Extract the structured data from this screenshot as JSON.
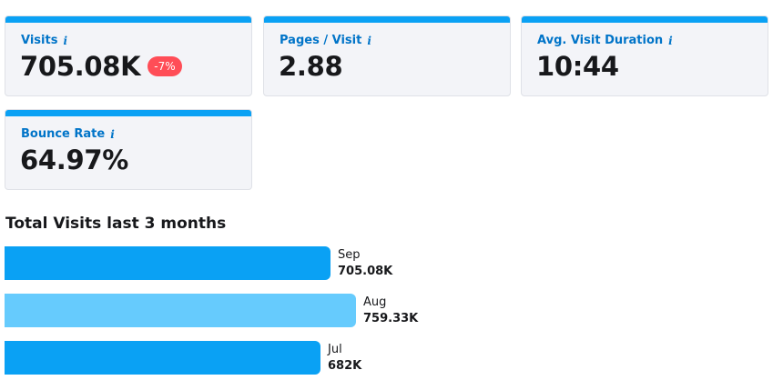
{
  "metrics": [
    {
      "label": "Visits",
      "value": "705.08K",
      "badge": "-7%",
      "info_icon": "info-icon"
    },
    {
      "label": "Pages / Visit",
      "value": "2.88",
      "info_icon": "info-icon"
    },
    {
      "label": "Avg. Visit Duration",
      "value": "10:44",
      "info_icon": "info-icon"
    },
    {
      "label": "Bounce Rate",
      "value": "64.97%",
      "info_icon": "info-icon"
    }
  ],
  "colors": {
    "accent": "#0aa1f4",
    "label": "#0074c8",
    "badge_negative": "#ff4d57",
    "bar_primary": "#0aa1f4",
    "bar_highlight": "#66cbfd"
  },
  "chart_data": {
    "type": "bar",
    "orientation": "horizontal",
    "title": "Total Visits last 3 months",
    "categories": [
      "Sep",
      "Aug",
      "Jul"
    ],
    "values": [
      705080,
      759330,
      682000
    ],
    "value_labels": [
      "705.08K",
      "759.33K",
      "682K"
    ],
    "highlighted": "Aug"
  }
}
